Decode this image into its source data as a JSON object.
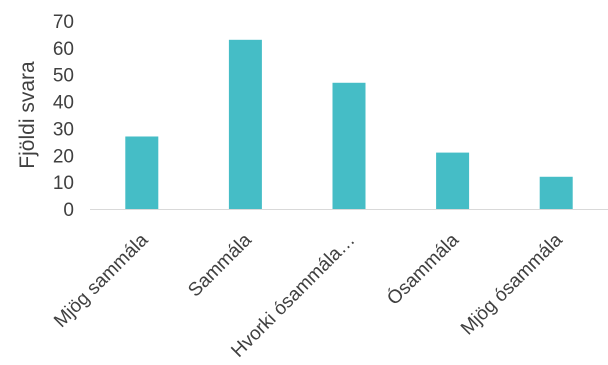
{
  "chart_data": {
    "type": "bar",
    "categories": [
      "Mjög sammála",
      "Sammála",
      "Hvorki ósammála…",
      "Ósammála",
      "Mjög ósammála"
    ],
    "values": [
      27,
      63,
      47,
      21,
      12
    ],
    "title": "",
    "xlabel": "",
    "ylabel": "Fjöldi svara",
    "ylim": [
      0,
      70
    ],
    "yticks": [
      0,
      10,
      20,
      30,
      40,
      50,
      60,
      70
    ],
    "grid": false,
    "legend": "none",
    "bar_color": "#45BDC6",
    "axis_color": "#D9D9D9",
    "text_color": "#404040"
  }
}
